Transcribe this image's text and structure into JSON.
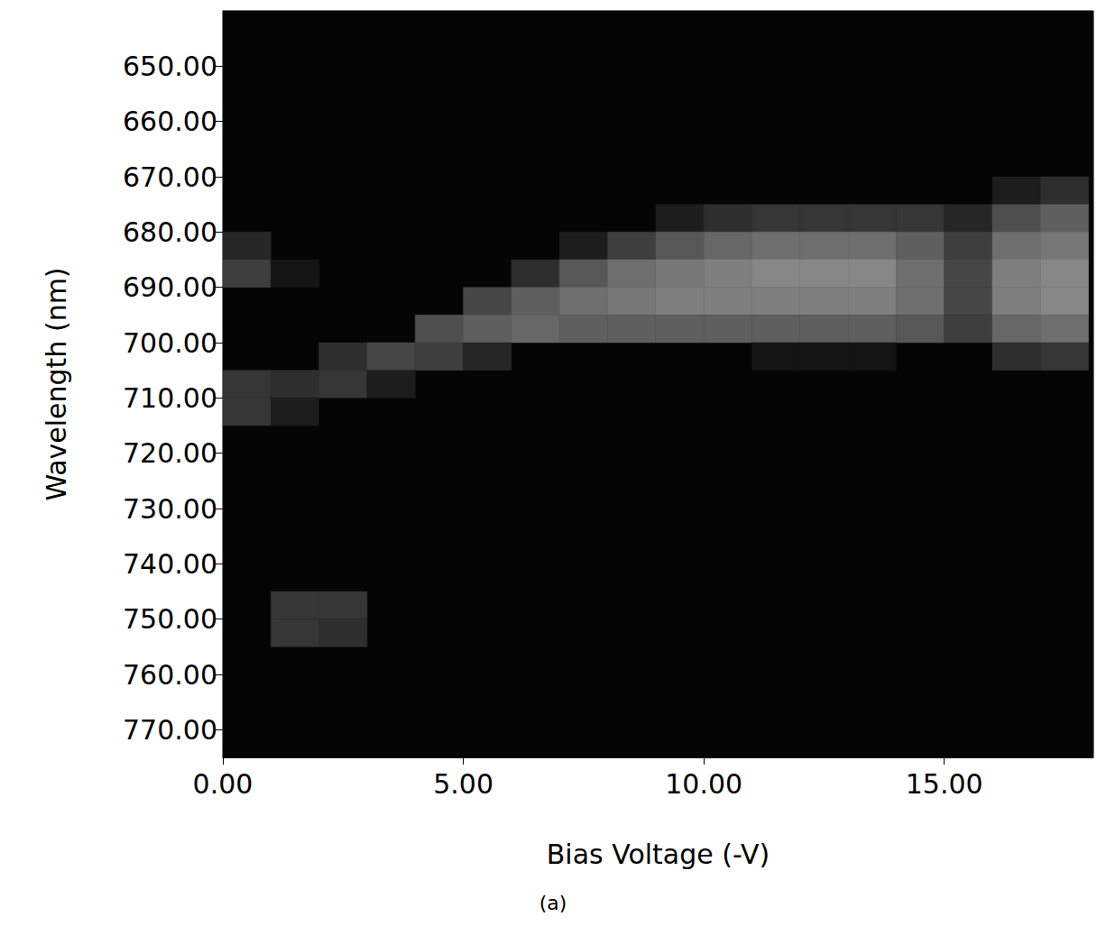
{
  "chart_data": {
    "type": "heatmap",
    "x_label": "Bias Voltage (-V)",
    "y_label": "Wavelength (nm)",
    "caption": "(a)",
    "xlim": [
      0,
      18.1
    ],
    "xticks": [
      {
        "value": 0,
        "label": "0.00"
      },
      {
        "value": 5,
        "label": "5.00"
      },
      {
        "value": 10,
        "label": "10.00"
      },
      {
        "value": 15,
        "label": "15.00"
      }
    ],
    "ylim": [
      640,
      775
    ],
    "yticks": [
      {
        "value": 650,
        "label": "650.00"
      },
      {
        "value": 660,
        "label": "660.00"
      },
      {
        "value": 670,
        "label": "670.00"
      },
      {
        "value": 680,
        "label": "680.00"
      },
      {
        "value": 690,
        "label": "690.00"
      },
      {
        "value": 700,
        "label": "700.00"
      },
      {
        "value": 710,
        "label": "710.00"
      },
      {
        "value": 720,
        "label": "720.00"
      },
      {
        "value": 730,
        "label": "730.00"
      },
      {
        "value": 740,
        "label": "740.00"
      },
      {
        "value": 750,
        "label": "750.00"
      },
      {
        "value": 760,
        "label": "760.00"
      },
      {
        "value": 770,
        "label": "770.00"
      }
    ],
    "cell_size": [
      1,
      5
    ],
    "color_range": [
      0,
      1
    ],
    "cmap": [
      "#050505",
      "#a8a8a8"
    ],
    "grid": false,
    "cells": [
      [
        0.5,
        682.5,
        0.2
      ],
      [
        0.5,
        687.5,
        0.35
      ],
      [
        0.5,
        707.5,
        0.3
      ],
      [
        0.5,
        712.5,
        0.3
      ],
      [
        1.5,
        687.5,
        0.1
      ],
      [
        1.5,
        707.5,
        0.25
      ],
      [
        1.5,
        712.5,
        0.15
      ],
      [
        1.5,
        747.5,
        0.3
      ],
      [
        1.5,
        752.5,
        0.3
      ],
      [
        2.5,
        702.5,
        0.25
      ],
      [
        2.5,
        707.5,
        0.3
      ],
      [
        2.5,
        747.5,
        0.3
      ],
      [
        2.5,
        752.5,
        0.25
      ],
      [
        3.5,
        702.5,
        0.4
      ],
      [
        3.5,
        707.5,
        0.15
      ],
      [
        4.5,
        697.5,
        0.45
      ],
      [
        4.5,
        702.5,
        0.35
      ],
      [
        5.5,
        692.5,
        0.4
      ],
      [
        5.5,
        697.5,
        0.55
      ],
      [
        5.5,
        702.5,
        0.2
      ],
      [
        6.5,
        687.5,
        0.25
      ],
      [
        6.5,
        692.5,
        0.55
      ],
      [
        6.5,
        697.5,
        0.6
      ],
      [
        7.5,
        682.5,
        0.15
      ],
      [
        7.5,
        687.5,
        0.5
      ],
      [
        7.5,
        692.5,
        0.65
      ],
      [
        7.5,
        697.5,
        0.55
      ],
      [
        8.5,
        682.5,
        0.35
      ],
      [
        8.5,
        687.5,
        0.65
      ],
      [
        8.5,
        692.5,
        0.7
      ],
      [
        8.5,
        697.5,
        0.55
      ],
      [
        9.5,
        677.5,
        0.15
      ],
      [
        9.5,
        682.5,
        0.5
      ],
      [
        9.5,
        687.5,
        0.7
      ],
      [
        9.5,
        692.5,
        0.75
      ],
      [
        9.5,
        697.5,
        0.55
      ],
      [
        10.5,
        677.5,
        0.25
      ],
      [
        10.5,
        682.5,
        0.6
      ],
      [
        10.5,
        687.5,
        0.75
      ],
      [
        10.5,
        692.5,
        0.75
      ],
      [
        10.5,
        697.5,
        0.55
      ],
      [
        11.5,
        677.5,
        0.3
      ],
      [
        11.5,
        682.5,
        0.65
      ],
      [
        11.5,
        687.5,
        0.8
      ],
      [
        11.5,
        692.5,
        0.75
      ],
      [
        11.5,
        697.5,
        0.55
      ],
      [
        11.5,
        702.5,
        0.1
      ],
      [
        12.5,
        677.5,
        0.3
      ],
      [
        12.5,
        682.5,
        0.65
      ],
      [
        12.5,
        687.5,
        0.8
      ],
      [
        12.5,
        692.5,
        0.75
      ],
      [
        12.5,
        697.5,
        0.55
      ],
      [
        12.5,
        702.5,
        0.1
      ],
      [
        13.5,
        677.5,
        0.3
      ],
      [
        13.5,
        682.5,
        0.65
      ],
      [
        13.5,
        687.5,
        0.8
      ],
      [
        13.5,
        692.5,
        0.75
      ],
      [
        13.5,
        697.5,
        0.55
      ],
      [
        13.5,
        702.5,
        0.1
      ],
      [
        14.5,
        677.5,
        0.3
      ],
      [
        14.5,
        682.5,
        0.55
      ],
      [
        14.5,
        687.5,
        0.65
      ],
      [
        14.5,
        692.5,
        0.65
      ],
      [
        14.5,
        697.5,
        0.5
      ],
      [
        15.5,
        677.5,
        0.2
      ],
      [
        15.5,
        682.5,
        0.35
      ],
      [
        15.5,
        687.5,
        0.4
      ],
      [
        15.5,
        692.5,
        0.4
      ],
      [
        15.5,
        697.5,
        0.35
      ],
      [
        16.5,
        672.5,
        0.15
      ],
      [
        16.5,
        677.5,
        0.45
      ],
      [
        16.5,
        682.5,
        0.65
      ],
      [
        16.5,
        687.5,
        0.75
      ],
      [
        16.5,
        692.5,
        0.75
      ],
      [
        16.5,
        697.5,
        0.6
      ],
      [
        16.5,
        702.5,
        0.25
      ],
      [
        17.5,
        672.5,
        0.25
      ],
      [
        17.5,
        677.5,
        0.55
      ],
      [
        17.5,
        682.5,
        0.7
      ],
      [
        17.5,
        687.5,
        0.8
      ],
      [
        17.5,
        692.5,
        0.8
      ],
      [
        17.5,
        697.5,
        0.65
      ],
      [
        17.5,
        702.5,
        0.3
      ]
    ]
  }
}
